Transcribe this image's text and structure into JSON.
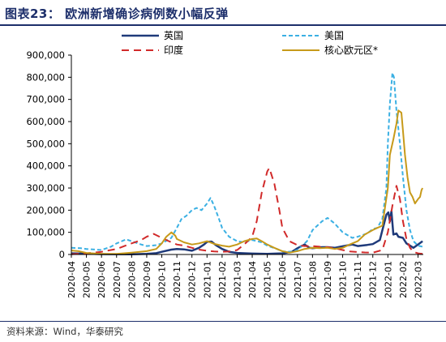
{
  "header": {
    "title": "图表23： 欧洲新增确诊病例数小幅反弹"
  },
  "footer": {
    "source": "资料来源：Wind，华泰研究"
  },
  "chart_data": {
    "type": "line",
    "ylim": [
      0,
      900000
    ],
    "y_ticks": [
      0,
      100000,
      200000,
      300000,
      400000,
      500000,
      600000,
      700000,
      800000,
      900000
    ],
    "y_tick_labels": [
      "0",
      "100,000",
      "200,000",
      "300,000",
      "400,000",
      "500,000",
      "600,000",
      "700,000",
      "800,000",
      "900,000"
    ],
    "x_tick_labels": [
      "2020-04",
      "2020-05",
      "2020-06",
      "2020-07",
      "2020-08",
      "2020-09",
      "2020-10",
      "2020-11",
      "2020-12",
      "2021-01",
      "2021-02",
      "2021-03",
      "2021-04",
      "2021-05",
      "2021-06",
      "2021-07",
      "2021-08",
      "2021-09",
      "2021-10",
      "2021-11",
      "2021-12",
      "2022-01",
      "2022-02",
      "2022-03"
    ],
    "x_range": [
      "2020-04",
      "2022-03"
    ],
    "grid": false,
    "legend_position": "top",
    "series": [
      {
        "name": "英国",
        "color": "#1f3a7a",
        "dash": "solid",
        "width": 2.5,
        "points": [
          [
            "2020-04",
            5000
          ],
          [
            "2020-05",
            4000
          ],
          [
            "2020-06",
            1500
          ],
          [
            "2020-07",
            700
          ],
          [
            "2020-08",
            1000
          ],
          [
            "2020-09",
            3000
          ],
          [
            "2020-09-20",
            6000
          ],
          [
            "2020-10",
            12000
          ],
          [
            "2020-10-20",
            22000
          ],
          [
            "2020-11",
            25000
          ],
          [
            "2020-11-15",
            23000
          ],
          [
            "2020-12",
            17000
          ],
          [
            "2020-12-15",
            30000
          ],
          [
            "2020-12-25",
            45000
          ],
          [
            "2021-01",
            57000
          ],
          [
            "2021-01-10",
            58000
          ],
          [
            "2021-01-20",
            40000
          ],
          [
            "2021-02",
            25000
          ],
          [
            "2021-02-15",
            12000
          ],
          [
            "2021-03",
            7000
          ],
          [
            "2021-03-15",
            5500
          ],
          [
            "2021-04",
            4000
          ],
          [
            "2021-05",
            2500
          ],
          [
            "2021-06",
            5000
          ],
          [
            "2021-06-20",
            12000
          ],
          [
            "2021-07",
            28000
          ],
          [
            "2021-07-15",
            45000
          ],
          [
            "2021-07-25",
            30000
          ],
          [
            "2021-08",
            28000
          ],
          [
            "2021-08-20",
            33000
          ],
          [
            "2021-09",
            33000
          ],
          [
            "2021-09-15",
            30000
          ],
          [
            "2021-10",
            37000
          ],
          [
            "2021-10-20",
            45000
          ],
          [
            "2021-11",
            38000
          ],
          [
            "2021-11-20",
            43000
          ],
          [
            "2021-12",
            47000
          ],
          [
            "2021-12-15",
            65000
          ],
          [
            "2021-12-28",
            180000
          ],
          [
            "2022-01-02",
            190000
          ],
          [
            "2022-01-05",
            150000
          ],
          [
            "2022-01-08",
            195000
          ],
          [
            "2022-01-12",
            90000
          ],
          [
            "2022-01-18",
            95000
          ],
          [
            "2022-01-22",
            80000
          ],
          [
            "2022-02",
            75000
          ],
          [
            "2022-02-08",
            50000
          ],
          [
            "2022-02-15",
            40000
          ],
          [
            "2022-02-22",
            30000
          ],
          [
            "2022-03",
            45000
          ],
          [
            "2022-03-10",
            60000
          ]
        ]
      },
      {
        "name": "美国",
        "color": "#3bb0e3",
        "dash": "5,3",
        "width": 2,
        "points": [
          [
            "2020-04",
            30000
          ],
          [
            "2020-04-20",
            28000
          ],
          [
            "2020-05",
            25000
          ],
          [
            "2020-05-20",
            22000
          ],
          [
            "2020-06",
            20000
          ],
          [
            "2020-06-20",
            35000
          ],
          [
            "2020-07",
            50000
          ],
          [
            "2020-07-20",
            68000
          ],
          [
            "2020-08",
            60000
          ],
          [
            "2020-08-20",
            45000
          ],
          [
            "2020-09",
            38000
          ],
          [
            "2020-09-20",
            42000
          ],
          [
            "2020-10",
            50000
          ],
          [
            "2020-10-20",
            75000
          ],
          [
            "2020-11",
            120000
          ],
          [
            "2020-11-10",
            160000
          ],
          [
            "2020-11-20",
            175000
          ],
          [
            "2020-12",
            200000
          ],
          [
            "2020-12-10",
            210000
          ],
          [
            "2020-12-20",
            200000
          ],
          [
            "2021-01",
            230000
          ],
          [
            "2021-01-08",
            255000
          ],
          [
            "2021-01-15",
            220000
          ],
          [
            "2021-01-25",
            160000
          ],
          [
            "2021-02",
            120000
          ],
          [
            "2021-02-15",
            80000
          ],
          [
            "2021-03",
            60000
          ],
          [
            "2021-03-15",
            55000
          ],
          [
            "2021-04",
            65000
          ],
          [
            "2021-04-20",
            55000
          ],
          [
            "2021-05",
            40000
          ],
          [
            "2021-05-20",
            25000
          ],
          [
            "2021-06",
            14000
          ],
          [
            "2021-06-20",
            12000
          ],
          [
            "2021-07",
            20000
          ],
          [
            "2021-07-20",
            60000
          ],
          [
            "2021-08",
            110000
          ],
          [
            "2021-08-20",
            150000
          ],
          [
            "2021-09",
            165000
          ],
          [
            "2021-09-15",
            140000
          ],
          [
            "2021-10",
            100000
          ],
          [
            "2021-10-20",
            75000
          ],
          [
            "2021-11",
            80000
          ],
          [
            "2021-11-20",
            95000
          ],
          [
            "2021-12",
            115000
          ],
          [
            "2021-12-10",
            120000
          ],
          [
            "2021-12-20",
            160000
          ],
          [
            "2021-12-28",
            300000
          ],
          [
            "2022-01",
            500000
          ],
          [
            "2022-01-05",
            680000
          ],
          [
            "2022-01-10",
            820000
          ],
          [
            "2022-01-13",
            800000
          ],
          [
            "2022-01-18",
            650000
          ],
          [
            "2022-01-25",
            500000
          ],
          [
            "2022-02",
            350000
          ],
          [
            "2022-02-08",
            200000
          ],
          [
            "2022-02-15",
            110000
          ],
          [
            "2022-02-22",
            60000
          ],
          [
            "2022-03",
            40000
          ],
          [
            "2022-03-10",
            35000
          ]
        ]
      },
      {
        "name": "印度",
        "color": "#d12a2a",
        "dash": "9,6",
        "width": 2,
        "points": [
          [
            "2020-04",
            1000
          ],
          [
            "2020-05",
            5000
          ],
          [
            "2020-06",
            12000
          ],
          [
            "2020-07",
            25000
          ],
          [
            "2020-08",
            50000
          ],
          [
            "2020-08-20",
            65000
          ],
          [
            "2020-09",
            80000
          ],
          [
            "2020-09-15",
            93000
          ],
          [
            "2020-10",
            75000
          ],
          [
            "2020-10-15",
            60000
          ],
          [
            "2020-11",
            45000
          ],
          [
            "2020-11-15",
            40000
          ],
          [
            "2020-12",
            30000
          ],
          [
            "2020-12-15",
            22000
          ],
          [
            "2021-01",
            17000
          ],
          [
            "2021-01-15",
            14000
          ],
          [
            "2021-02",
            12000
          ],
          [
            "2021-02-15",
            13000
          ],
          [
            "2021-03",
            20000
          ],
          [
            "2021-03-15",
            45000
          ],
          [
            "2021-04",
            80000
          ],
          [
            "2021-04-10",
            150000
          ],
          [
            "2021-04-20",
            280000
          ],
          [
            "2021-05",
            375000
          ],
          [
            "2021-05-05",
            390000
          ],
          [
            "2021-05-15",
            320000
          ],
          [
            "2021-05-25",
            200000
          ],
          [
            "2021-06",
            120000
          ],
          [
            "2021-06-15",
            60000
          ],
          [
            "2021-07",
            42000
          ],
          [
            "2021-07-15",
            38000
          ],
          [
            "2021-08",
            38000
          ],
          [
            "2021-08-15",
            35000
          ],
          [
            "2021-09",
            33000
          ],
          [
            "2021-09-15",
            28000
          ],
          [
            "2021-10",
            20000
          ],
          [
            "2021-10-15",
            14000
          ],
          [
            "2021-11",
            11000
          ],
          [
            "2021-11-15",
            9000
          ],
          [
            "2021-12",
            8000
          ],
          [
            "2021-12-20",
            20000
          ],
          [
            "2022-01",
            100000
          ],
          [
            "2022-01-10",
            220000
          ],
          [
            "2022-01-18",
            310000
          ],
          [
            "2022-01-25",
            250000
          ],
          [
            "2022-02",
            150000
          ],
          [
            "2022-02-08",
            70000
          ],
          [
            "2022-02-15",
            30000
          ],
          [
            "2022-02-22",
            12000
          ],
          [
            "2022-03",
            5000
          ],
          [
            "2022-03-10",
            3000
          ]
        ]
      },
      {
        "name": "核心欧元区*",
        "color": "#c79a1a",
        "dash": "solid",
        "width": 2,
        "points": [
          [
            "2020-04",
            18000
          ],
          [
            "2020-04-15",
            15000
          ],
          [
            "2020-05",
            7000
          ],
          [
            "2020-06",
            3000
          ],
          [
            "2020-07",
            2500
          ],
          [
            "2020-08",
            8000
          ],
          [
            "2020-09",
            15000
          ],
          [
            "2020-09-20",
            25000
          ],
          [
            "2020-10",
            50000
          ],
          [
            "2020-10-10",
            80000
          ],
          [
            "2020-10-20",
            100000
          ],
          [
            "2020-10-28",
            85000
          ],
          [
            "2020-11",
            70000
          ],
          [
            "2020-11-15",
            55000
          ],
          [
            "2020-12",
            45000
          ],
          [
            "2020-12-15",
            50000
          ],
          [
            "2021-01",
            60000
          ],
          [
            "2021-01-15",
            48000
          ],
          [
            "2021-02",
            40000
          ],
          [
            "2021-02-15",
            35000
          ],
          [
            "2021-03",
            45000
          ],
          [
            "2021-03-15",
            60000
          ],
          [
            "2021-04",
            70000
          ],
          [
            "2021-04-10",
            72000
          ],
          [
            "2021-04-20",
            60000
          ],
          [
            "2021-05",
            45000
          ],
          [
            "2021-05-15",
            30000
          ],
          [
            "2021-06",
            15000
          ],
          [
            "2021-06-15",
            8000
          ],
          [
            "2021-07",
            15000
          ],
          [
            "2021-07-15",
            25000
          ],
          [
            "2021-08",
            30000
          ],
          [
            "2021-08-15",
            28000
          ],
          [
            "2021-09",
            30000
          ],
          [
            "2021-09-15",
            25000
          ],
          [
            "2021-10",
            30000
          ],
          [
            "2021-10-15",
            45000
          ],
          [
            "2021-11",
            60000
          ],
          [
            "2021-11-15",
            90000
          ],
          [
            "2021-12",
            110000
          ],
          [
            "2021-12-10",
            120000
          ],
          [
            "2021-12-20",
            130000
          ],
          [
            "2022-01",
            300000
          ],
          [
            "2022-01-05",
            450000
          ],
          [
            "2022-01-12",
            520000
          ],
          [
            "2022-01-18",
            590000
          ],
          [
            "2022-01-22",
            650000
          ],
          [
            "2022-01-28",
            640000
          ],
          [
            "2022-02",
            560000
          ],
          [
            "2022-02-05",
            450000
          ],
          [
            "2022-02-10",
            350000
          ],
          [
            "2022-02-15",
            280000
          ],
          [
            "2022-02-20",
            260000
          ],
          [
            "2022-02-25",
            230000
          ],
          [
            "2022-03",
            250000
          ],
          [
            "2022-03-05",
            260000
          ],
          [
            "2022-03-08",
            290000
          ],
          [
            "2022-03-10",
            300000
          ]
        ]
      }
    ]
  }
}
